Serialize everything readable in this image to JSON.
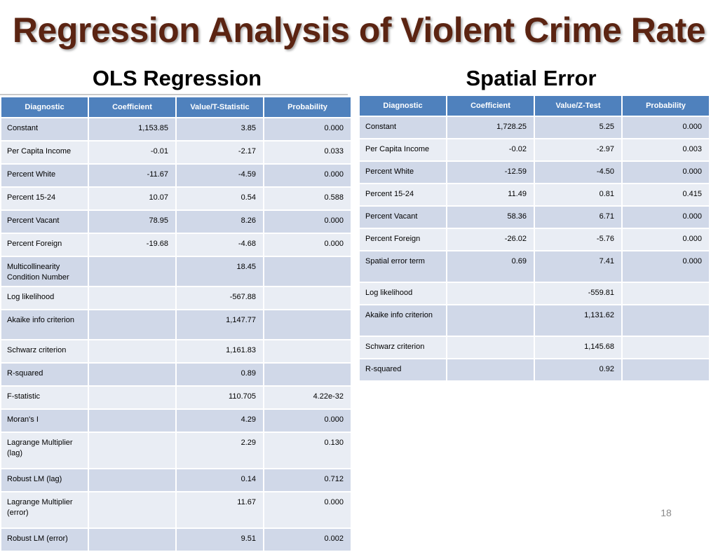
{
  "title": "Regression Analysis of Violent Crime Rate",
  "ols": {
    "heading": "OLS Regression",
    "columns": [
      "Diagnostic",
      "Coefficient",
      "Value/T-Statistic",
      "Probability"
    ],
    "rows": [
      [
        "Constant",
        "1,153.85",
        "3.85",
        "0.000"
      ],
      [
        "Per Capita Income",
        "-0.01",
        "-2.17",
        "0.033"
      ],
      [
        "Percent White",
        "-11.67",
        "-4.59",
        "0.000"
      ],
      [
        "Percent 15-24",
        "10.07",
        "0.54",
        "0.588"
      ],
      [
        "Percent Vacant",
        "78.95",
        "8.26",
        "0.000"
      ],
      [
        "Percent Foreign",
        "-19.68",
        "-4.68",
        "0.000"
      ],
      [
        "Multicollinearity Condition Number",
        "",
        "18.45",
        ""
      ],
      [
        "Log likelihood",
        "",
        "-567.88",
        ""
      ],
      [
        "Akaike info criterion",
        "",
        "1,147.77",
        ""
      ],
      [
        "Schwarz criterion",
        "",
        "1,161.83",
        ""
      ],
      [
        "R-squared",
        "",
        "0.89",
        ""
      ],
      [
        "F-statistic",
        "",
        "110.705",
        "4.22e-32"
      ],
      [
        "Moran's I",
        "",
        "4.29",
        "0.000"
      ],
      [
        "Lagrange Multiplier (lag)",
        "",
        "2.29",
        "0.130"
      ],
      [
        "Robust LM (lag)",
        "",
        "0.14",
        "0.712"
      ],
      [
        "Lagrange Multiplier (error)",
        "",
        "11.67",
        "0.000"
      ],
      [
        "Robust LM (error)",
        "",
        "9.51",
        "0.002"
      ]
    ]
  },
  "spatial_error": {
    "heading": "Spatial Error",
    "columns": [
      "Diagnostic",
      "Coefficient",
      "Value/Z-Test",
      "Probability"
    ],
    "rows": [
      [
        "Constant",
        "1,728.25",
        "5.25",
        "0.000"
      ],
      [
        "Per Capita Income",
        "-0.02",
        "-2.97",
        "0.003"
      ],
      [
        "Percent White",
        "-12.59",
        "-4.50",
        "0.000"
      ],
      [
        "Percent 15-24",
        "11.49",
        "0.81",
        "0.415"
      ],
      [
        "Percent Vacant",
        "58.36",
        "6.71",
        "0.000"
      ],
      [
        "Percent Foreign",
        "-26.02",
        "-5.76",
        "0.000"
      ],
      [
        "Spatial error term",
        "0.69",
        "7.41",
        "0.000"
      ],
      [
        "Log likelihood",
        "",
        "-559.81",
        ""
      ],
      [
        "Akaike info criterion",
        "",
        "1,131.62",
        ""
      ],
      [
        "Schwarz criterion",
        "",
        "1,145.68",
        ""
      ],
      [
        "R-squared",
        "",
        "0.92",
        ""
      ]
    ]
  },
  "slide_number": "18",
  "colors": {
    "title": "#5b2412",
    "header": "#4f81bd",
    "row_odd": "#d0d8e8",
    "row_even": "#e9edf4"
  }
}
